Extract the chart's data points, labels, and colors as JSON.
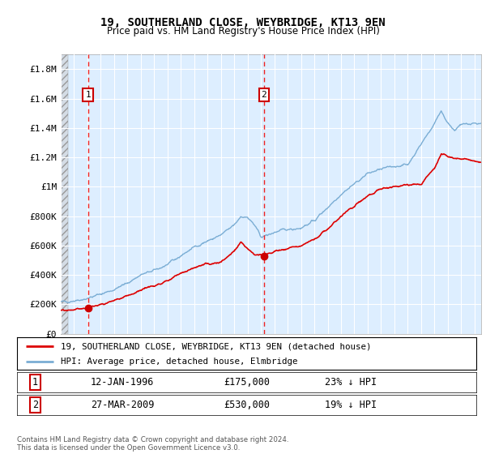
{
  "title": "19, SOUTHERLAND CLOSE, WEYBRIDGE, KT13 9EN",
  "subtitle": "Price paid vs. HM Land Registry's House Price Index (HPI)",
  "ylabel_ticks": [
    "£0",
    "£200K",
    "£400K",
    "£600K",
    "£800K",
    "£1M",
    "£1.2M",
    "£1.4M",
    "£1.6M",
    "£1.8M"
  ],
  "ylabel_values": [
    0,
    200000,
    400000,
    600000,
    800000,
    1000000,
    1200000,
    1400000,
    1600000,
    1800000
  ],
  "ylim": [
    0,
    1900000
  ],
  "xlim_start": 1994.0,
  "xlim_end": 2025.5,
  "sale1_x": 1996.04,
  "sale1_y": 175000,
  "sale2_x": 2009.23,
  "sale2_y": 530000,
  "sale1_label": "1",
  "sale2_label": "2",
  "line_color_property": "#dd0000",
  "line_color_hpi": "#7aadd4",
  "marker_color": "#cc0000",
  "dashed_line_color": "#ee2222",
  "background_color": "#ddeeff",
  "grid_color": "#ffffff",
  "legend_line1": "19, SOUTHERLAND CLOSE, WEYBRIDGE, KT13 9EN (detached house)",
  "legend_line2": "HPI: Average price, detached house, Elmbridge",
  "annotation1_date": "12-JAN-1996",
  "annotation1_price": "£175,000",
  "annotation1_hpi": "23% ↓ HPI",
  "annotation2_date": "27-MAR-2009",
  "annotation2_price": "£530,000",
  "annotation2_hpi": "19% ↓ HPI",
  "footer": "Contains HM Land Registry data © Crown copyright and database right 2024.\nThis data is licensed under the Open Government Licence v3.0.",
  "hpi_key_years": [
    1994,
    1995,
    1996,
    1997,
    1998,
    1999,
    2000,
    2001,
    2002,
    2003,
    2004,
    2005,
    2006,
    2007,
    2007.5,
    2008,
    2008.5,
    2009,
    2009.5,
    2010,
    2011,
    2012,
    2013,
    2014,
    2015,
    2016,
    2017,
    2018,
    2019,
    2020,
    2021,
    2022,
    2022.5,
    2023,
    2023.5,
    2024,
    2025
  ],
  "hpi_key_values": [
    215000,
    225000,
    240000,
    270000,
    300000,
    345000,
    400000,
    430000,
    470000,
    530000,
    590000,
    630000,
    670000,
    740000,
    800000,
    790000,
    740000,
    660000,
    670000,
    690000,
    710000,
    720000,
    770000,
    860000,
    950000,
    1020000,
    1090000,
    1120000,
    1140000,
    1150000,
    1290000,
    1430000,
    1520000,
    1430000,
    1390000,
    1420000,
    1430000
  ],
  "prop_key_years": [
    1994,
    1995.5,
    1996.04,
    1997,
    1998,
    1999,
    2000,
    2001,
    2002,
    2003,
    2004,
    2005,
    2006,
    2007,
    2007.5,
    2008,
    2008.5,
    2009.23,
    2010,
    2011,
    2012,
    2013,
    2014,
    2015,
    2016,
    2017,
    2018,
    2019,
    2020,
    2021,
    2022,
    2022.5,
    2023,
    2024,
    2025
  ],
  "prop_key_values": [
    155000,
    170000,
    175000,
    200000,
    220000,
    255000,
    300000,
    330000,
    360000,
    410000,
    450000,
    470000,
    490000,
    560000,
    620000,
    580000,
    540000,
    530000,
    560000,
    580000,
    600000,
    640000,
    710000,
    800000,
    870000,
    940000,
    980000,
    1000000,
    1010000,
    1020000,
    1130000,
    1220000,
    1200000,
    1190000,
    1170000
  ]
}
